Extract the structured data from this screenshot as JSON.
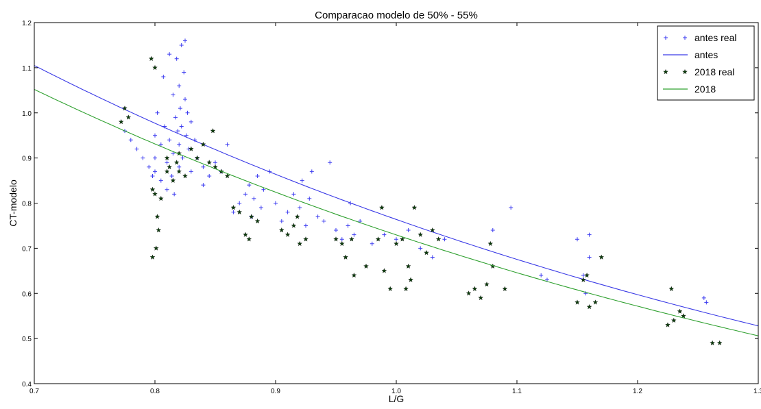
{
  "chart_data": {
    "type": "scatter",
    "title": "Comparacao modelo de 50% - 55%",
    "xlabel": "L/G",
    "ylabel": "CT-modelo",
    "xlim": [
      0.7,
      1.3
    ],
    "ylim": [
      0.4,
      1.2
    ],
    "xticks": [
      "0.7",
      "0.8",
      "0.9",
      "1.0",
      "1.1",
      "1.2",
      "1.3"
    ],
    "yticks": [
      "0.4",
      "0.5",
      "0.6",
      "0.7",
      "0.8",
      "0.9",
      "1.0",
      "1.1",
      "1.2"
    ],
    "grid": false,
    "legend_position": "top-right",
    "colors": {
      "antes_real": "#3b3bf0",
      "antes": "#3a3ae6",
      "2018_real": "#0d3d0d",
      "2018": "#2ea02e"
    },
    "series": [
      {
        "name": "antes real",
        "kind": "scatter",
        "marker": "plus",
        "points": [
          [
            0.775,
            0.96
          ],
          [
            0.78,
            0.94
          ],
          [
            0.785,
            0.92
          ],
          [
            0.79,
            0.9
          ],
          [
            0.795,
            0.88
          ],
          [
            0.798,
            0.86
          ],
          [
            0.8,
            0.95
          ],
          [
            0.8,
            0.9
          ],
          [
            0.8,
            0.87
          ],
          [
            0.802,
            1.0
          ],
          [
            0.805,
            0.93
          ],
          [
            0.805,
            0.85
          ],
          [
            0.807,
            1.08
          ],
          [
            0.808,
            0.97
          ],
          [
            0.81,
            0.89
          ],
          [
            0.81,
            0.83
          ],
          [
            0.812,
            1.13
          ],
          [
            0.812,
            0.94
          ],
          [
            0.814,
            0.86
          ],
          [
            0.815,
            1.04
          ],
          [
            0.815,
            0.91
          ],
          [
            0.816,
            0.82
          ],
          [
            0.817,
            0.99
          ],
          [
            0.818,
            1.12
          ],
          [
            0.819,
            0.96
          ],
          [
            0.82,
            1.06
          ],
          [
            0.82,
            0.93
          ],
          [
            0.82,
            0.88
          ],
          [
            0.821,
            1.01
          ],
          [
            0.822,
            1.15
          ],
          [
            0.822,
            0.97
          ],
          [
            0.823,
            0.9
          ],
          [
            0.824,
            1.09
          ],
          [
            0.825,
            1.16
          ],
          [
            0.825,
            1.03
          ],
          [
            0.826,
            0.95
          ],
          [
            0.827,
            1.0
          ],
          [
            0.828,
            0.92
          ],
          [
            0.83,
            0.98
          ],
          [
            0.83,
            0.87
          ],
          [
            0.833,
            0.94
          ],
          [
            0.835,
            0.9
          ],
          [
            0.84,
            0.88
          ],
          [
            0.84,
            0.84
          ],
          [
            0.845,
            0.86
          ],
          [
            0.85,
            0.89
          ],
          [
            0.855,
            0.87
          ],
          [
            0.86,
            0.93
          ],
          [
            0.865,
            0.78
          ],
          [
            0.87,
            0.8
          ],
          [
            0.875,
            0.82
          ],
          [
            0.878,
            0.84
          ],
          [
            0.88,
            0.77
          ],
          [
            0.882,
            0.81
          ],
          [
            0.885,
            0.86
          ],
          [
            0.888,
            0.79
          ],
          [
            0.89,
            0.83
          ],
          [
            0.895,
            0.87
          ],
          [
            0.9,
            0.8
          ],
          [
            0.905,
            0.76
          ],
          [
            0.91,
            0.78
          ],
          [
            0.915,
            0.82
          ],
          [
            0.92,
            0.79
          ],
          [
            0.922,
            0.85
          ],
          [
            0.925,
            0.75
          ],
          [
            0.928,
            0.81
          ],
          [
            0.93,
            0.87
          ],
          [
            0.935,
            0.77
          ],
          [
            0.94,
            0.76
          ],
          [
            0.945,
            0.89
          ],
          [
            0.95,
            0.74
          ],
          [
            0.955,
            0.72
          ],
          [
            0.96,
            0.75
          ],
          [
            0.962,
            0.8
          ],
          [
            0.965,
            0.73
          ],
          [
            0.97,
            0.76
          ],
          [
            0.98,
            0.71
          ],
          [
            0.99,
            0.73
          ],
          [
            1.0,
            0.72
          ],
          [
            1.01,
            0.74
          ],
          [
            1.02,
            0.7
          ],
          [
            1.03,
            0.68
          ],
          [
            1.04,
            0.72
          ],
          [
            1.08,
            0.74
          ],
          [
            1.095,
            0.79
          ],
          [
            1.12,
            0.64
          ],
          [
            1.125,
            0.63
          ],
          [
            1.15,
            0.72
          ],
          [
            1.155,
            0.64
          ],
          [
            1.157,
            0.6
          ],
          [
            1.16,
            0.73
          ],
          [
            1.16,
            0.68
          ],
          [
            1.255,
            0.59
          ],
          [
            1.257,
            0.58
          ]
        ]
      },
      {
        "name": "antes",
        "kind": "line",
        "model": "exp",
        "points": [
          [
            0.7,
            1.105
          ],
          [
            0.75,
            1.036
          ],
          [
            0.8,
            0.965
          ],
          [
            0.85,
            0.902
          ],
          [
            0.9,
            0.845
          ],
          [
            0.95,
            0.792
          ],
          [
            1.0,
            0.743
          ],
          [
            1.05,
            0.697
          ],
          [
            1.1,
            0.654
          ],
          [
            1.15,
            0.614
          ],
          [
            1.2,
            0.578
          ],
          [
            1.25,
            0.55
          ],
          [
            1.3,
            0.528
          ]
        ]
      },
      {
        "name": "2018 real",
        "kind": "scatter",
        "marker": "star",
        "points": [
          [
            0.772,
            0.98
          ],
          [
            0.775,
            1.01
          ],
          [
            0.778,
            0.99
          ],
          [
            0.797,
            1.12
          ],
          [
            0.798,
            0.83
          ],
          [
            0.798,
            0.68
          ],
          [
            0.8,
            1.1
          ],
          [
            0.8,
            0.82
          ],
          [
            0.801,
            0.7
          ],
          [
            0.802,
            0.77
          ],
          [
            0.803,
            0.74
          ],
          [
            0.805,
            0.81
          ],
          [
            0.81,
            0.9
          ],
          [
            0.81,
            0.87
          ],
          [
            0.812,
            0.88
          ],
          [
            0.815,
            0.85
          ],
          [
            0.818,
            0.89
          ],
          [
            0.82,
            0.87
          ],
          [
            0.82,
            0.91
          ],
          [
            0.825,
            0.86
          ],
          [
            0.83,
            0.92
          ],
          [
            0.835,
            0.9
          ],
          [
            0.84,
            0.93
          ],
          [
            0.845,
            0.89
          ],
          [
            0.848,
            0.96
          ],
          [
            0.85,
            0.88
          ],
          [
            0.855,
            0.87
          ],
          [
            0.86,
            0.86
          ],
          [
            0.865,
            0.79
          ],
          [
            0.87,
            0.78
          ],
          [
            0.875,
            0.73
          ],
          [
            0.878,
            0.72
          ],
          [
            0.88,
            0.77
          ],
          [
            0.885,
            0.76
          ],
          [
            0.905,
            0.74
          ],
          [
            0.91,
            0.73
          ],
          [
            0.915,
            0.75
          ],
          [
            0.918,
            0.77
          ],
          [
            0.92,
            0.71
          ],
          [
            0.925,
            0.72
          ],
          [
            0.95,
            0.72
          ],
          [
            0.955,
            0.71
          ],
          [
            0.958,
            0.68
          ],
          [
            0.963,
            0.72
          ],
          [
            0.965,
            0.64
          ],
          [
            0.975,
            0.66
          ],
          [
            0.985,
            0.72
          ],
          [
            0.988,
            0.79
          ],
          [
            0.99,
            0.65
          ],
          [
            0.995,
            0.61
          ],
          [
            1.0,
            0.71
          ],
          [
            1.005,
            0.72
          ],
          [
            1.008,
            0.61
          ],
          [
            1.01,
            0.66
          ],
          [
            1.012,
            0.63
          ],
          [
            1.015,
            0.79
          ],
          [
            1.02,
            0.73
          ],
          [
            1.025,
            0.69
          ],
          [
            1.03,
            0.74
          ],
          [
            1.035,
            0.72
          ],
          [
            1.06,
            0.6
          ],
          [
            1.065,
            0.61
          ],
          [
            1.07,
            0.59
          ],
          [
            1.075,
            0.62
          ],
          [
            1.078,
            0.71
          ],
          [
            1.08,
            0.66
          ],
          [
            1.09,
            0.61
          ],
          [
            1.15,
            0.58
          ],
          [
            1.155,
            0.63
          ],
          [
            1.158,
            0.64
          ],
          [
            1.16,
            0.57
          ],
          [
            1.165,
            0.58
          ],
          [
            1.17,
            0.68
          ],
          [
            1.225,
            0.53
          ],
          [
            1.228,
            0.61
          ],
          [
            1.23,
            0.54
          ],
          [
            1.235,
            0.56
          ],
          [
            1.238,
            0.55
          ],
          [
            1.262,
            0.49
          ],
          [
            1.268,
            0.49
          ]
        ]
      },
      {
        "name": "2018",
        "kind": "line",
        "model": "exp",
        "points": [
          [
            0.7,
            1.052
          ],
          [
            0.75,
            0.982
          ],
          [
            0.8,
            0.92
          ],
          [
            0.85,
            0.86
          ],
          [
            0.9,
            0.805
          ],
          [
            0.95,
            0.754
          ],
          [
            1.0,
            0.707
          ],
          [
            1.05,
            0.663
          ],
          [
            1.1,
            0.623
          ],
          [
            1.15,
            0.587
          ],
          [
            1.2,
            0.555
          ],
          [
            1.25,
            0.528
          ],
          [
            1.3,
            0.506
          ]
        ]
      }
    ]
  }
}
